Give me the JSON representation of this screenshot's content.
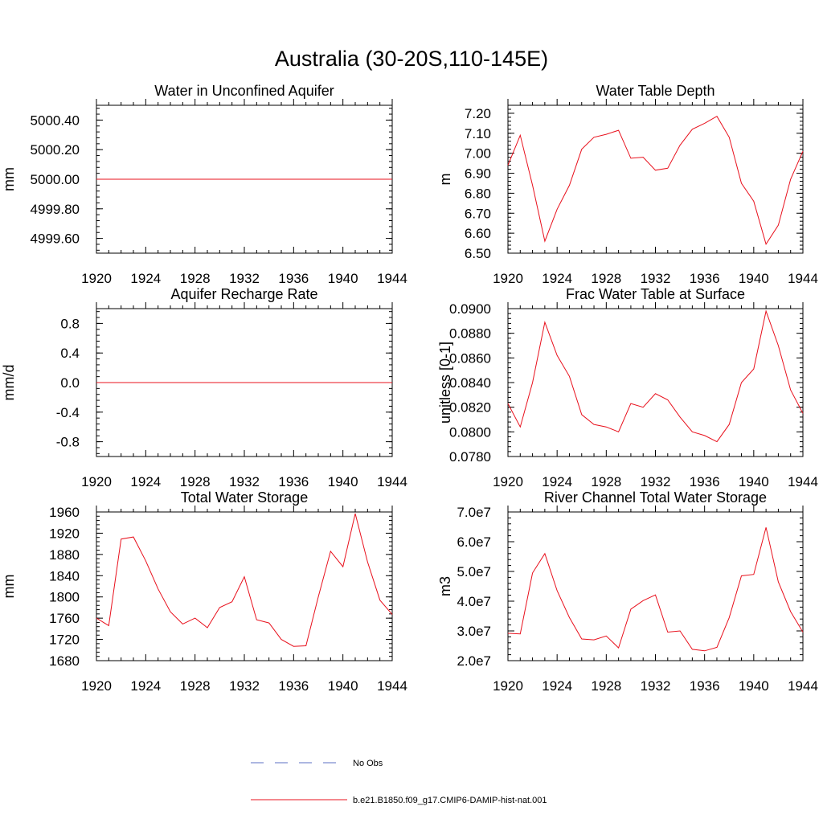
{
  "figure": {
    "title": "Australia (30-20S,110-145E)"
  },
  "legend": {
    "entries": [
      {
        "label": "No Obs",
        "color": "#5b6fc4",
        "style": "dashed"
      },
      {
        "label": "b.e21.B1850.f09_g17.CMIP6-DAMIP-hist-nat.001",
        "color": "#e8101c",
        "style": "solid"
      }
    ]
  },
  "chart_data": [
    {
      "type": "line",
      "title": "Water in Unconfined Aquifer",
      "xlabel": "",
      "ylabel": "mm",
      "xlim": [
        1920,
        1944
      ],
      "ylim": [
        4999.5,
        5000.5
      ],
      "xticks": [
        1920,
        1924,
        1928,
        1932,
        1936,
        1940,
        1944
      ],
      "yticks": [
        4999.6,
        4999.8,
        5000.0,
        5000.2,
        5000.4
      ],
      "ytick_labels": [
        "4999.60",
        "4999.80",
        "5000.00",
        "5000.20",
        "5000.40"
      ],
      "x": [
        1920,
        1921,
        1922,
        1923,
        1924,
        1925,
        1926,
        1927,
        1928,
        1929,
        1930,
        1931,
        1932,
        1933,
        1934,
        1935,
        1936,
        1937,
        1938,
        1939,
        1940,
        1941,
        1942,
        1943,
        1944
      ],
      "series": [
        {
          "color": "#e8101c",
          "values": [
            5000,
            5000,
            5000,
            5000,
            5000,
            5000,
            5000,
            5000,
            5000,
            5000,
            5000,
            5000,
            5000,
            5000,
            5000,
            5000,
            5000,
            5000,
            5000,
            5000,
            5000,
            5000,
            5000,
            5000,
            5000
          ]
        }
      ]
    },
    {
      "type": "line",
      "title": "Water Table Depth",
      "xlabel": "",
      "ylabel": "m",
      "xlim": [
        1920,
        1944
      ],
      "ylim": [
        6.5,
        7.24
      ],
      "xticks": [
        1920,
        1924,
        1928,
        1932,
        1936,
        1940,
        1944
      ],
      "yticks": [
        6.5,
        6.6,
        6.7,
        6.8,
        6.9,
        7.0,
        7.1,
        7.2
      ],
      "ytick_labels": [
        "6.50",
        "6.60",
        "6.70",
        "6.80",
        "6.90",
        "7.00",
        "7.10",
        "7.20"
      ],
      "x": [
        1920,
        1921,
        1922,
        1923,
        1924,
        1925,
        1926,
        1927,
        1928,
        1929,
        1930,
        1931,
        1932,
        1933,
        1934,
        1935,
        1936,
        1937,
        1938,
        1939,
        1940,
        1941,
        1942,
        1943,
        1944
      ],
      "series": [
        {
          "color": "#e8101c",
          "values": [
            6.94,
            7.09,
            6.84,
            6.56,
            6.72,
            6.84,
            7.02,
            7.08,
            7.095,
            7.115,
            6.975,
            6.98,
            6.915,
            6.925,
            7.04,
            7.12,
            7.15,
            7.185,
            7.08,
            6.85,
            6.76,
            6.545,
            6.64,
            6.87,
            7.01
          ]
        }
      ]
    },
    {
      "type": "line",
      "title": "Aquifer Recharge Rate",
      "xlabel": "",
      "ylabel": "mm/d",
      "xlim": [
        1920,
        1944
      ],
      "ylim": [
        -1.0,
        1.0
      ],
      "xticks": [
        1920,
        1924,
        1928,
        1932,
        1936,
        1940,
        1944
      ],
      "yticks": [
        -0.8,
        -0.4,
        0.0,
        0.4,
        0.8
      ],
      "ytick_labels": [
        "-0.8",
        "-0.4",
        "0.0",
        "0.4",
        "0.8"
      ],
      "x": [
        1920,
        1921,
        1922,
        1923,
        1924,
        1925,
        1926,
        1927,
        1928,
        1929,
        1930,
        1931,
        1932,
        1933,
        1934,
        1935,
        1936,
        1937,
        1938,
        1939,
        1940,
        1941,
        1942,
        1943,
        1944
      ],
      "series": [
        {
          "color": "#e8101c",
          "values": [
            0,
            0,
            0,
            0,
            0,
            0,
            0,
            0,
            0,
            0,
            0,
            0,
            0,
            0,
            0,
            0,
            0,
            0,
            0,
            0,
            0,
            0,
            0,
            0,
            0
          ]
        }
      ]
    },
    {
      "type": "line",
      "title": "Frac Water Table at Surface",
      "xlabel": "",
      "ylabel": "unitless [0-1]",
      "xlim": [
        1920,
        1944
      ],
      "ylim": [
        0.078,
        0.09
      ],
      "xticks": [
        1920,
        1924,
        1928,
        1932,
        1936,
        1940,
        1944
      ],
      "yticks": [
        0.078,
        0.08,
        0.082,
        0.084,
        0.086,
        0.088,
        0.09
      ],
      "ytick_labels": [
        "0.0780",
        "0.0800",
        "0.0820",
        "0.0840",
        "0.0860",
        "0.0880",
        "0.0900"
      ],
      "x": [
        1920,
        1921,
        1922,
        1923,
        1924,
        1925,
        1926,
        1927,
        1928,
        1929,
        1930,
        1931,
        1932,
        1933,
        1934,
        1935,
        1936,
        1937,
        1938,
        1939,
        1940,
        1941,
        1942,
        1943,
        1944
      ],
      "series": [
        {
          "color": "#e8101c",
          "values": [
            0.0823,
            0.0804,
            0.084,
            0.0889,
            0.0862,
            0.0845,
            0.0814,
            0.0806,
            0.0804,
            0.08,
            0.0823,
            0.082,
            0.0831,
            0.0826,
            0.0812,
            0.08,
            0.0797,
            0.0792,
            0.0806,
            0.084,
            0.0851,
            0.0898,
            0.087,
            0.0834,
            0.0815
          ]
        }
      ]
    },
    {
      "type": "line",
      "title": "Total Water Storage",
      "xlabel": "",
      "ylabel": "mm",
      "xlim": [
        1920,
        1944
      ],
      "ylim": [
        1680,
        1960
      ],
      "xticks": [
        1920,
        1924,
        1928,
        1932,
        1936,
        1940,
        1944
      ],
      "yticks": [
        1680,
        1720,
        1760,
        1800,
        1840,
        1880,
        1920,
        1960
      ],
      "ytick_labels": [
        "1680",
        "1720",
        "1760",
        "1800",
        "1840",
        "1880",
        "1920",
        "1960"
      ],
      "x": [
        1920,
        1921,
        1922,
        1923,
        1924,
        1925,
        1926,
        1927,
        1928,
        1929,
        1930,
        1931,
        1932,
        1933,
        1934,
        1935,
        1936,
        1937,
        1938,
        1939,
        1940,
        1941,
        1942,
        1943,
        1944
      ],
      "series": [
        {
          "color": "#e8101c",
          "values": [
            1760,
            1746,
            1909,
            1913,
            1868,
            1815,
            1772,
            1749,
            1760,
            1742,
            1780,
            1791,
            1838,
            1757,
            1751,
            1720,
            1707,
            1708,
            1800,
            1886,
            1857,
            1957,
            1866,
            1794,
            1767
          ]
        }
      ]
    },
    {
      "type": "line",
      "title": "River Channel Total Water Storage",
      "xlabel": "",
      "ylabel": "m3",
      "xlim": [
        1920,
        1944
      ],
      "ylim": [
        20000000,
        70000000
      ],
      "xticks": [
        1920,
        1924,
        1928,
        1932,
        1936,
        1940,
        1944
      ],
      "yticks": [
        20000000,
        30000000,
        40000000,
        50000000,
        60000000,
        70000000
      ],
      "ytick_labels": [
        "2.0e7",
        "3.0e7",
        "4.0e7",
        "5.0e7",
        "6.0e7",
        "7.0e7"
      ],
      "x": [
        1920,
        1921,
        1922,
        1923,
        1924,
        1925,
        1926,
        1927,
        1928,
        1929,
        1930,
        1931,
        1932,
        1933,
        1934,
        1935,
        1936,
        1937,
        1938,
        1939,
        1940,
        1941,
        1942,
        1943,
        1944
      ],
      "series": [
        {
          "color": "#e8101c",
          "values": [
            29200000,
            29000000,
            49500000,
            56000000,
            43500000,
            34500000,
            27300000,
            27000000,
            28300000,
            24300000,
            37300000,
            40200000,
            42100000,
            29600000,
            30000000,
            23800000,
            23300000,
            24500000,
            34500000,
            48500000,
            49000000,
            64800000,
            46500000,
            36500000,
            29600000
          ]
        }
      ]
    }
  ]
}
